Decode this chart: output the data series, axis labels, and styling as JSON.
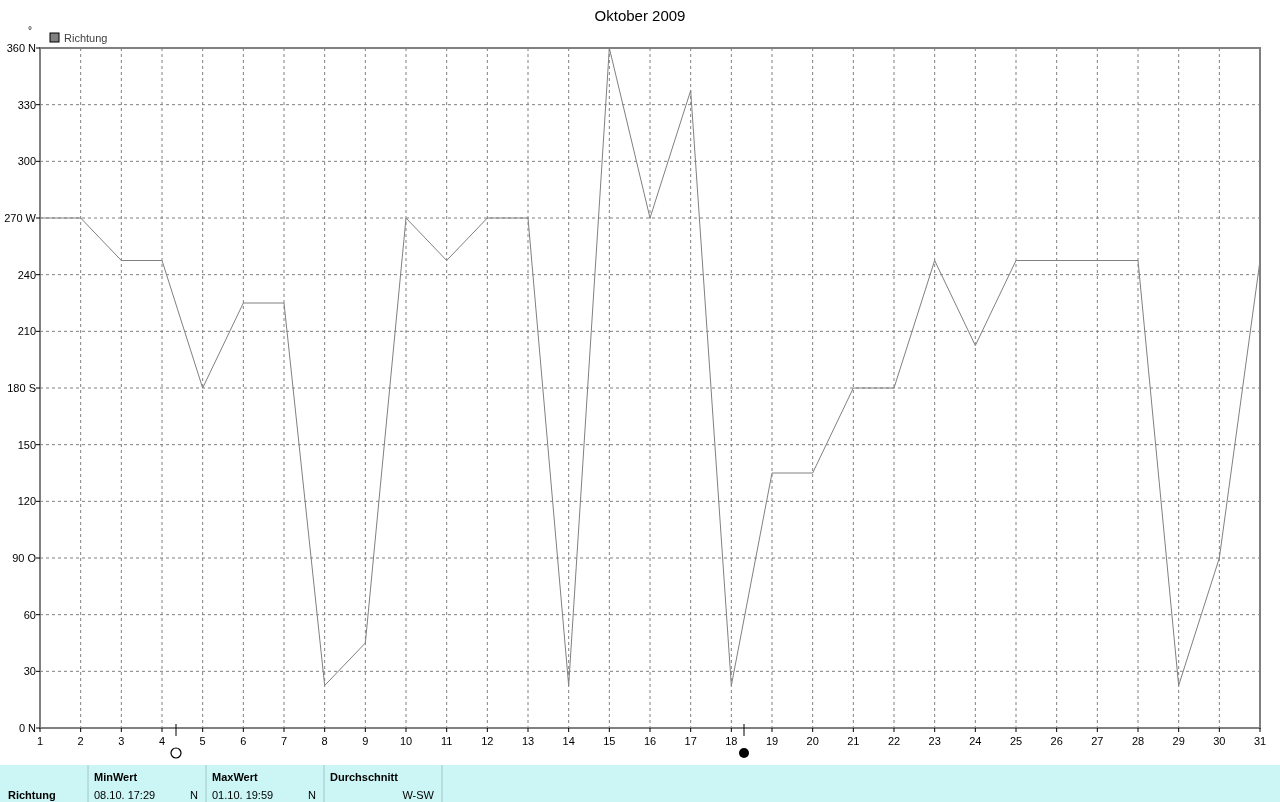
{
  "chart_data": {
    "type": "line",
    "title": "Oktober 2009",
    "ylabel": "°",
    "x": [
      1,
      2,
      3,
      4,
      5,
      6,
      7,
      8,
      9,
      10,
      11,
      12,
      13,
      14,
      15,
      16,
      17,
      18,
      19,
      20,
      21,
      22,
      23,
      24,
      25,
      26,
      27,
      28,
      29,
      30,
      31
    ],
    "series": [
      {
        "name": "Richtung",
        "color": "#808080",
        "values": [
          270,
          270,
          247.5,
          247.5,
          180,
          225,
          225,
          22.5,
          45,
          270,
          247.5,
          270,
          270,
          22.5,
          360,
          270,
          337.5,
          22.5,
          135,
          135,
          180,
          180,
          247.5,
          202.5,
          247.5,
          247.5,
          247.5,
          247.5,
          22.5,
          90,
          247.5
        ]
      }
    ],
    "xlim": [
      1,
      31
    ],
    "xticks": [
      1,
      2,
      3,
      4,
      5,
      6,
      7,
      8,
      9,
      10,
      11,
      12,
      13,
      14,
      15,
      16,
      17,
      18,
      19,
      20,
      21,
      22,
      23,
      24,
      25,
      26,
      27,
      28,
      29,
      30,
      31
    ],
    "ylim": [
      0,
      360
    ],
    "yticks": [
      {
        "value": 0,
        "label": "0 N"
      },
      30,
      60,
      {
        "value": 90,
        "label": "90 O"
      },
      120,
      150,
      {
        "value": 180,
        "label": "180 S"
      },
      210,
      240,
      {
        "value": 270,
        "label": "270 W"
      },
      300,
      330,
      {
        "value": 360,
        "label": "360 N"
      }
    ],
    "grid": true,
    "legend": "top left",
    "marker": "none",
    "line_style": "solid",
    "annotations": [
      "Richtung",
      "MinWert",
      "08.10.  17:29",
      "N",
      "MaxWert",
      "01.10.  19:59",
      "N",
      "Durchschnitt",
      "W-SW"
    ]
  }
}
